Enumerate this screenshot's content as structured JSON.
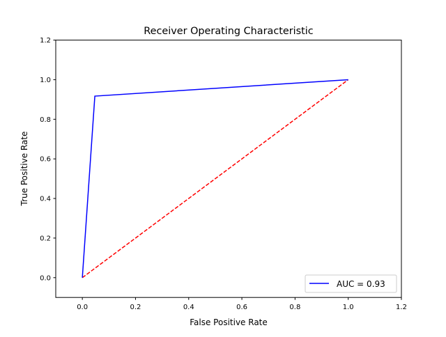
{
  "chart_data": {
    "type": "line",
    "title": "Receiver Operating Characteristic",
    "xlabel": "False Positive Rate",
    "ylabel": "True Positive Rate",
    "xlim": [
      -0.1,
      1.2
    ],
    "ylim": [
      -0.1,
      1.2
    ],
    "xticks": [
      "0.0",
      "0.2",
      "0.4",
      "0.6",
      "0.8",
      "1.0",
      "1.2"
    ],
    "yticks": [
      "0.0",
      "0.2",
      "0.4",
      "0.6",
      "0.8",
      "1.0",
      "1.2"
    ],
    "grid": false,
    "legend_position": "lower-right",
    "series": [
      {
        "name": "AUC = 0.93",
        "x": [
          0,
          0.047,
          1.0
        ],
        "y": [
          0,
          0.917,
          1.0
        ],
        "color": "#0000ff",
        "style": "solid"
      },
      {
        "x": [
          0,
          1
        ],
        "y": [
          0,
          1
        ],
        "color": "#ff0000",
        "style": "dashed"
      }
    ]
  }
}
